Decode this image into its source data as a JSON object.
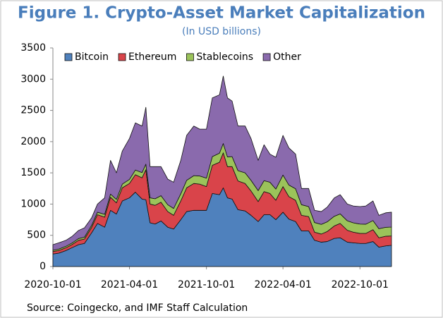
{
  "chart_data": {
    "type": "stacked_area",
    "title": "Figure 1. Crypto-Asset Market Capitalization",
    "subtitle": "(In USD billions)",
    "source": "Source: Coingecko, and IMF Staff Calculation",
    "legend": "top",
    "x": [
      "2020-10-01",
      "2020-10-15",
      "2020-11-01",
      "2020-11-15",
      "2020-12-01",
      "2020-12-15",
      "2021-01-01",
      "2021-01-15",
      "2021-02-01",
      "2021-02-15",
      "2021-03-01",
      "2021-03-15",
      "2021-04-01",
      "2021-04-15",
      "2021-05-01",
      "2021-05-10",
      "2021-05-20",
      "2021-06-01",
      "2021-06-15",
      "2021-07-01",
      "2021-07-15",
      "2021-08-01",
      "2021-08-15",
      "2021-09-01",
      "2021-09-15",
      "2021-10-01",
      "2021-10-15",
      "2021-11-01",
      "2021-11-10",
      "2021-11-20",
      "2021-12-01",
      "2021-12-15",
      "2022-01-01",
      "2022-01-15",
      "2022-02-01",
      "2022-02-15",
      "2022-03-01",
      "2022-03-15",
      "2022-04-01",
      "2022-04-15",
      "2022-05-01",
      "2022-05-15",
      "2022-06-01",
      "2022-06-15",
      "2022-07-01",
      "2022-07-15",
      "2022-08-01",
      "2022-08-15",
      "2022-09-01",
      "2022-09-15",
      "2022-10-01",
      "2022-10-15",
      "2022-11-01",
      "2022-11-15",
      "2022-12-01",
      "2022-12-15"
    ],
    "series": [
      {
        "name": "Bitcoin",
        "color": "#4f81bd",
        "values": [
          200,
          215,
          255,
          300,
          350,
          370,
          540,
          690,
          630,
          900,
          840,
          1050,
          1100,
          1190,
          1080,
          1070,
          700,
          680,
          730,
          630,
          600,
          750,
          880,
          900,
          900,
          900,
          1170,
          1150,
          1260,
          1100,
          1080,
          910,
          890,
          820,
          720,
          830,
          830,
          750,
          870,
          760,
          720,
          570,
          570,
          420,
          390,
          400,
          450,
          460,
          390,
          380,
          370,
          370,
          400,
          310,
          330,
          340
        ]
      },
      {
        "name": "Ethereum",
        "color": "#d9444a",
        "values": [
          40,
          42,
          45,
          50,
          70,
          70,
          85,
          140,
          160,
          210,
          180,
          210,
          230,
          280,
          340,
          480,
          300,
          300,
          300,
          250,
          220,
          300,
          380,
          430,
          420,
          380,
          450,
          520,
          560,
          500,
          520,
          460,
          440,
          390,
          320,
          370,
          340,
          310,
          410,
          360,
          340,
          250,
          230,
          130,
          130,
          160,
          200,
          230,
          190,
          170,
          160,
          160,
          190,
          150,
          155,
          150
        ]
      },
      {
        "name": "Stablecoins",
        "color": "#9bc35a",
        "values": [
          20,
          22,
          24,
          25,
          28,
          30,
          35,
          40,
          45,
          50,
          55,
          60,
          65,
          75,
          85,
          90,
          100,
          105,
          105,
          110,
          110,
          115,
          120,
          125,
          130,
          135,
          140,
          145,
          150,
          155,
          160,
          165,
          170,
          170,
          175,
          175,
          180,
          180,
          185,
          185,
          185,
          170,
          160,
          155,
          155,
          155,
          155,
          153,
          152,
          150,
          150,
          148,
          146,
          145,
          143,
          142
        ]
      },
      {
        "name": "Other",
        "color": "#8a6aad",
        "values": [
          90,
          100,
          96,
          105,
          130,
          150,
          120,
          130,
          265,
          540,
          425,
          530,
          655,
          755,
          745,
          910,
          500,
          515,
          465,
          410,
          420,
          535,
          720,
          795,
          750,
          785,
          940,
          935,
          1080,
          945,
          890,
          715,
          750,
          670,
          485,
          575,
          450,
          510,
          635,
          595,
          555,
          260,
          290,
          195,
          205,
          235,
          295,
          307,
          268,
          270,
          280,
          292,
          314,
          215,
          232,
          238
        ]
      }
    ],
    "xlim": [
      "2020-10-01",
      "2022-12-15"
    ],
    "xticks": [
      "2020-10-01",
      "2021-04-01",
      "2021-10-01",
      "2022-04-01",
      "2022-10-01"
    ],
    "ylim": [
      0,
      3500
    ],
    "yticks": [
      0,
      500,
      1000,
      1500,
      2000,
      2500,
      3000,
      3500
    ]
  }
}
